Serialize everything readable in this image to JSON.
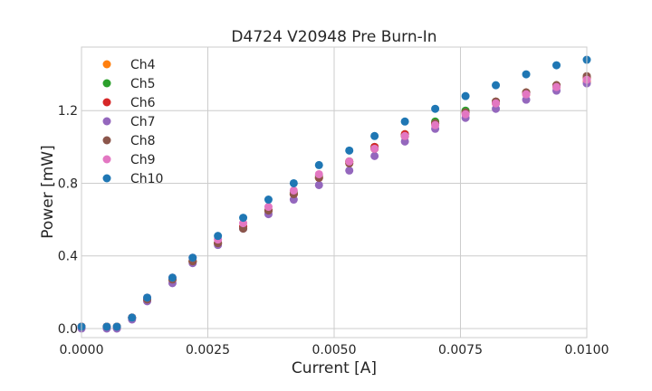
{
  "chart_data": {
    "type": "scatter",
    "title": "D4724 V20948 Pre Burn-In",
    "xlabel": "Current [A]",
    "ylabel": "Power [mW]",
    "xlim": [
      0.0,
      0.01
    ],
    "ylim": [
      -0.05,
      1.55
    ],
    "x_ticks": [
      0.0,
      0.0025,
      0.005,
      0.0075,
      0.01
    ],
    "x_tick_labels": [
      "0.0000",
      "0.0025",
      "0.0050",
      "0.0075",
      "0.0100"
    ],
    "y_ticks": [
      0.0,
      0.4,
      0.8,
      1.2
    ],
    "y_tick_labels": [
      "0.0",
      "0.4",
      "0.8",
      "1.2"
    ],
    "grid": true,
    "legend_position": "top-left",
    "x": [
      0.0,
      0.0005,
      0.0007,
      0.001,
      0.0013,
      0.0018,
      0.0022,
      0.0027,
      0.0032,
      0.0037,
      0.0042,
      0.0047,
      0.0053,
      0.0058,
      0.0064,
      0.007,
      0.0076,
      0.0082,
      0.0088,
      0.0094,
      0.01
    ],
    "series": [
      {
        "name": "Ch4",
        "color": "#ff7f0e",
        "values": [
          0.01,
          0.01,
          0.01,
          0.06,
          0.16,
          0.27,
          0.37,
          0.47,
          0.56,
          0.65,
          0.74,
          0.83,
          0.91,
          0.99,
          1.06,
          1.13,
          1.19,
          1.24,
          1.29,
          1.33,
          1.36
        ]
      },
      {
        "name": "Ch5",
        "color": "#2ca02c",
        "values": [
          0.01,
          0.01,
          0.01,
          0.06,
          0.16,
          0.27,
          0.37,
          0.47,
          0.56,
          0.65,
          0.75,
          0.84,
          0.92,
          1.0,
          1.07,
          1.14,
          1.2,
          1.25,
          1.3,
          1.34,
          1.38
        ]
      },
      {
        "name": "Ch6",
        "color": "#d62728",
        "values": [
          0.01,
          0.01,
          0.01,
          0.06,
          0.16,
          0.27,
          0.37,
          0.47,
          0.56,
          0.65,
          0.74,
          0.83,
          0.92,
          1.0,
          1.07,
          1.13,
          1.19,
          1.25,
          1.3,
          1.34,
          1.38
        ]
      },
      {
        "name": "Ch7",
        "color": "#9467bd",
        "values": [
          0.0,
          0.0,
          0.0,
          0.05,
          0.15,
          0.25,
          0.36,
          0.46,
          0.55,
          0.63,
          0.71,
          0.79,
          0.87,
          0.95,
          1.03,
          1.1,
          1.16,
          1.21,
          1.26,
          1.31,
          1.35
        ]
      },
      {
        "name": "Ch8",
        "color": "#8c564b",
        "values": [
          0.01,
          0.01,
          0.01,
          0.06,
          0.16,
          0.27,
          0.37,
          0.47,
          0.55,
          0.65,
          0.74,
          0.83,
          0.91,
          0.99,
          1.06,
          1.13,
          1.19,
          1.25,
          1.3,
          1.34,
          1.39
        ]
      },
      {
        "name": "Ch9",
        "color": "#e377c2",
        "values": [
          0.01,
          0.01,
          0.01,
          0.06,
          0.17,
          0.28,
          0.39,
          0.49,
          0.58,
          0.67,
          0.76,
          0.85,
          0.92,
          0.99,
          1.06,
          1.12,
          1.18,
          1.24,
          1.29,
          1.33,
          1.37
        ]
      },
      {
        "name": "Ch10",
        "color": "#1f77b4",
        "values": [
          0.01,
          0.01,
          0.01,
          0.06,
          0.17,
          0.28,
          0.39,
          0.51,
          0.61,
          0.71,
          0.8,
          0.9,
          0.98,
          1.06,
          1.14,
          1.21,
          1.28,
          1.34,
          1.4,
          1.45,
          1.48
        ]
      }
    ]
  }
}
